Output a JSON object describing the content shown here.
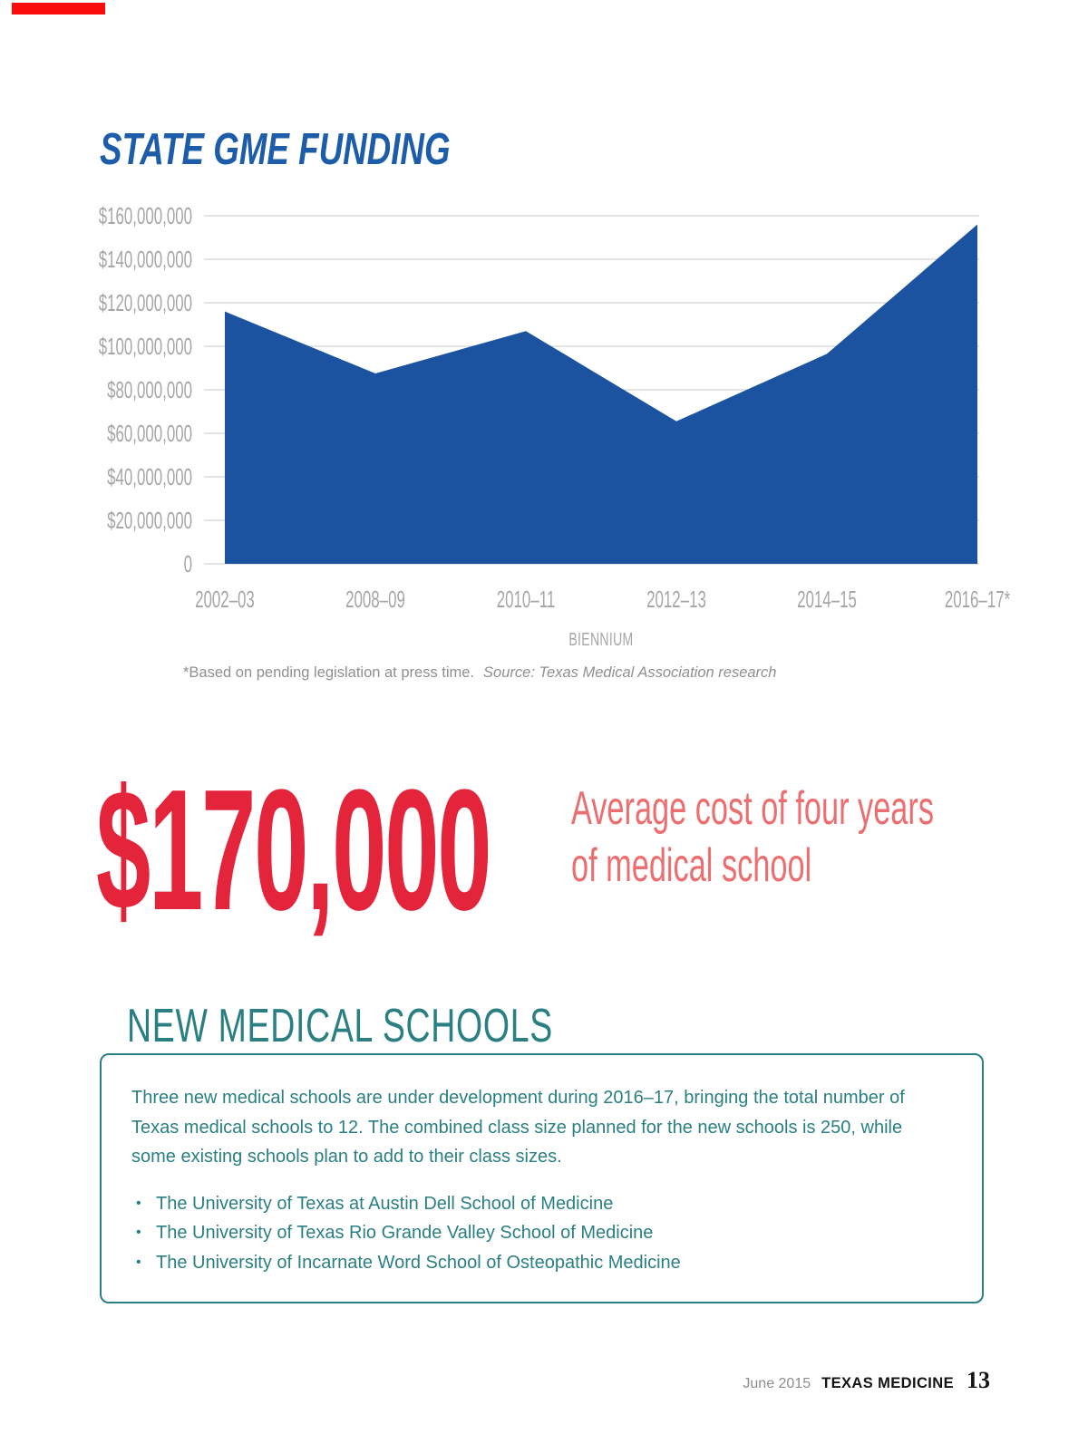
{
  "chart": {
    "title": "STATE GME FUNDING",
    "xlabel": "BIENNIUM",
    "footnote": {
      "note": "*Based on pending legislation at press time.",
      "source": "Source: Texas Medical Association research"
    }
  },
  "chart_data": {
    "type": "area",
    "title": "STATE GME FUNDING",
    "categories": [
      "2002–03",
      "2008–09",
      "2010–11",
      "2012–13",
      "2014–15",
      "2016–17*"
    ],
    "values": [
      116000000,
      87500000,
      107000000,
      65500000,
      96500000,
      156000000
    ],
    "xlabel": "BIENNIUM",
    "ylabel": "",
    "ylim": [
      0,
      160000000
    ],
    "ytick_interval": 20000000,
    "ytick_labels": [
      "$160,000,000",
      "$140,000,000",
      "$120,000,000",
      "$100,000,000",
      "$80,000,000",
      "$60,000,000",
      "$40,000,000",
      "$20,000,000",
      "0"
    ],
    "grid": true,
    "legend": "none",
    "area_color": "#1B53A1",
    "note": "*Based on pending legislation at press time.",
    "source": "Source: Texas Medical Association research"
  },
  "stat": {
    "amount": "$170,000",
    "caption_line1": "Average cost of four years",
    "caption_line2": "of medical school"
  },
  "schools": {
    "heading": "NEW MEDICAL SCHOOLS",
    "paragraph": "Three new medical schools are under development during 2016–17, bringing the total number of Texas medical schools to 12. The combined class size planned for the new schools is 250, while some existing schools plan to add to their class sizes.",
    "bullets": [
      "The University of Texas at Austin Dell School of Medicine",
      "The University of Texas Rio Grande Valley School of Medicine",
      "The University of Incarnate Word School of Osteopathic Medicine"
    ]
  },
  "footer": {
    "issue": "June 2015",
    "magazine": "TEXAS MEDICINE",
    "page_number": "13"
  },
  "colors": {
    "marker_red": "#F90D0B",
    "title_blue": "#1D5CA9",
    "chart_blue": "#1B53A1",
    "axis_gray": "#A6A6A4",
    "gridline_gray": "#DBDBD9",
    "footnote_gray": "#8F8F8D",
    "stat_red": "#E3243B",
    "caption_red": "#EB6E70",
    "teal": "#2A7F82",
    "footer_gray": "#8D8D8B",
    "footer_black": "#141414"
  }
}
